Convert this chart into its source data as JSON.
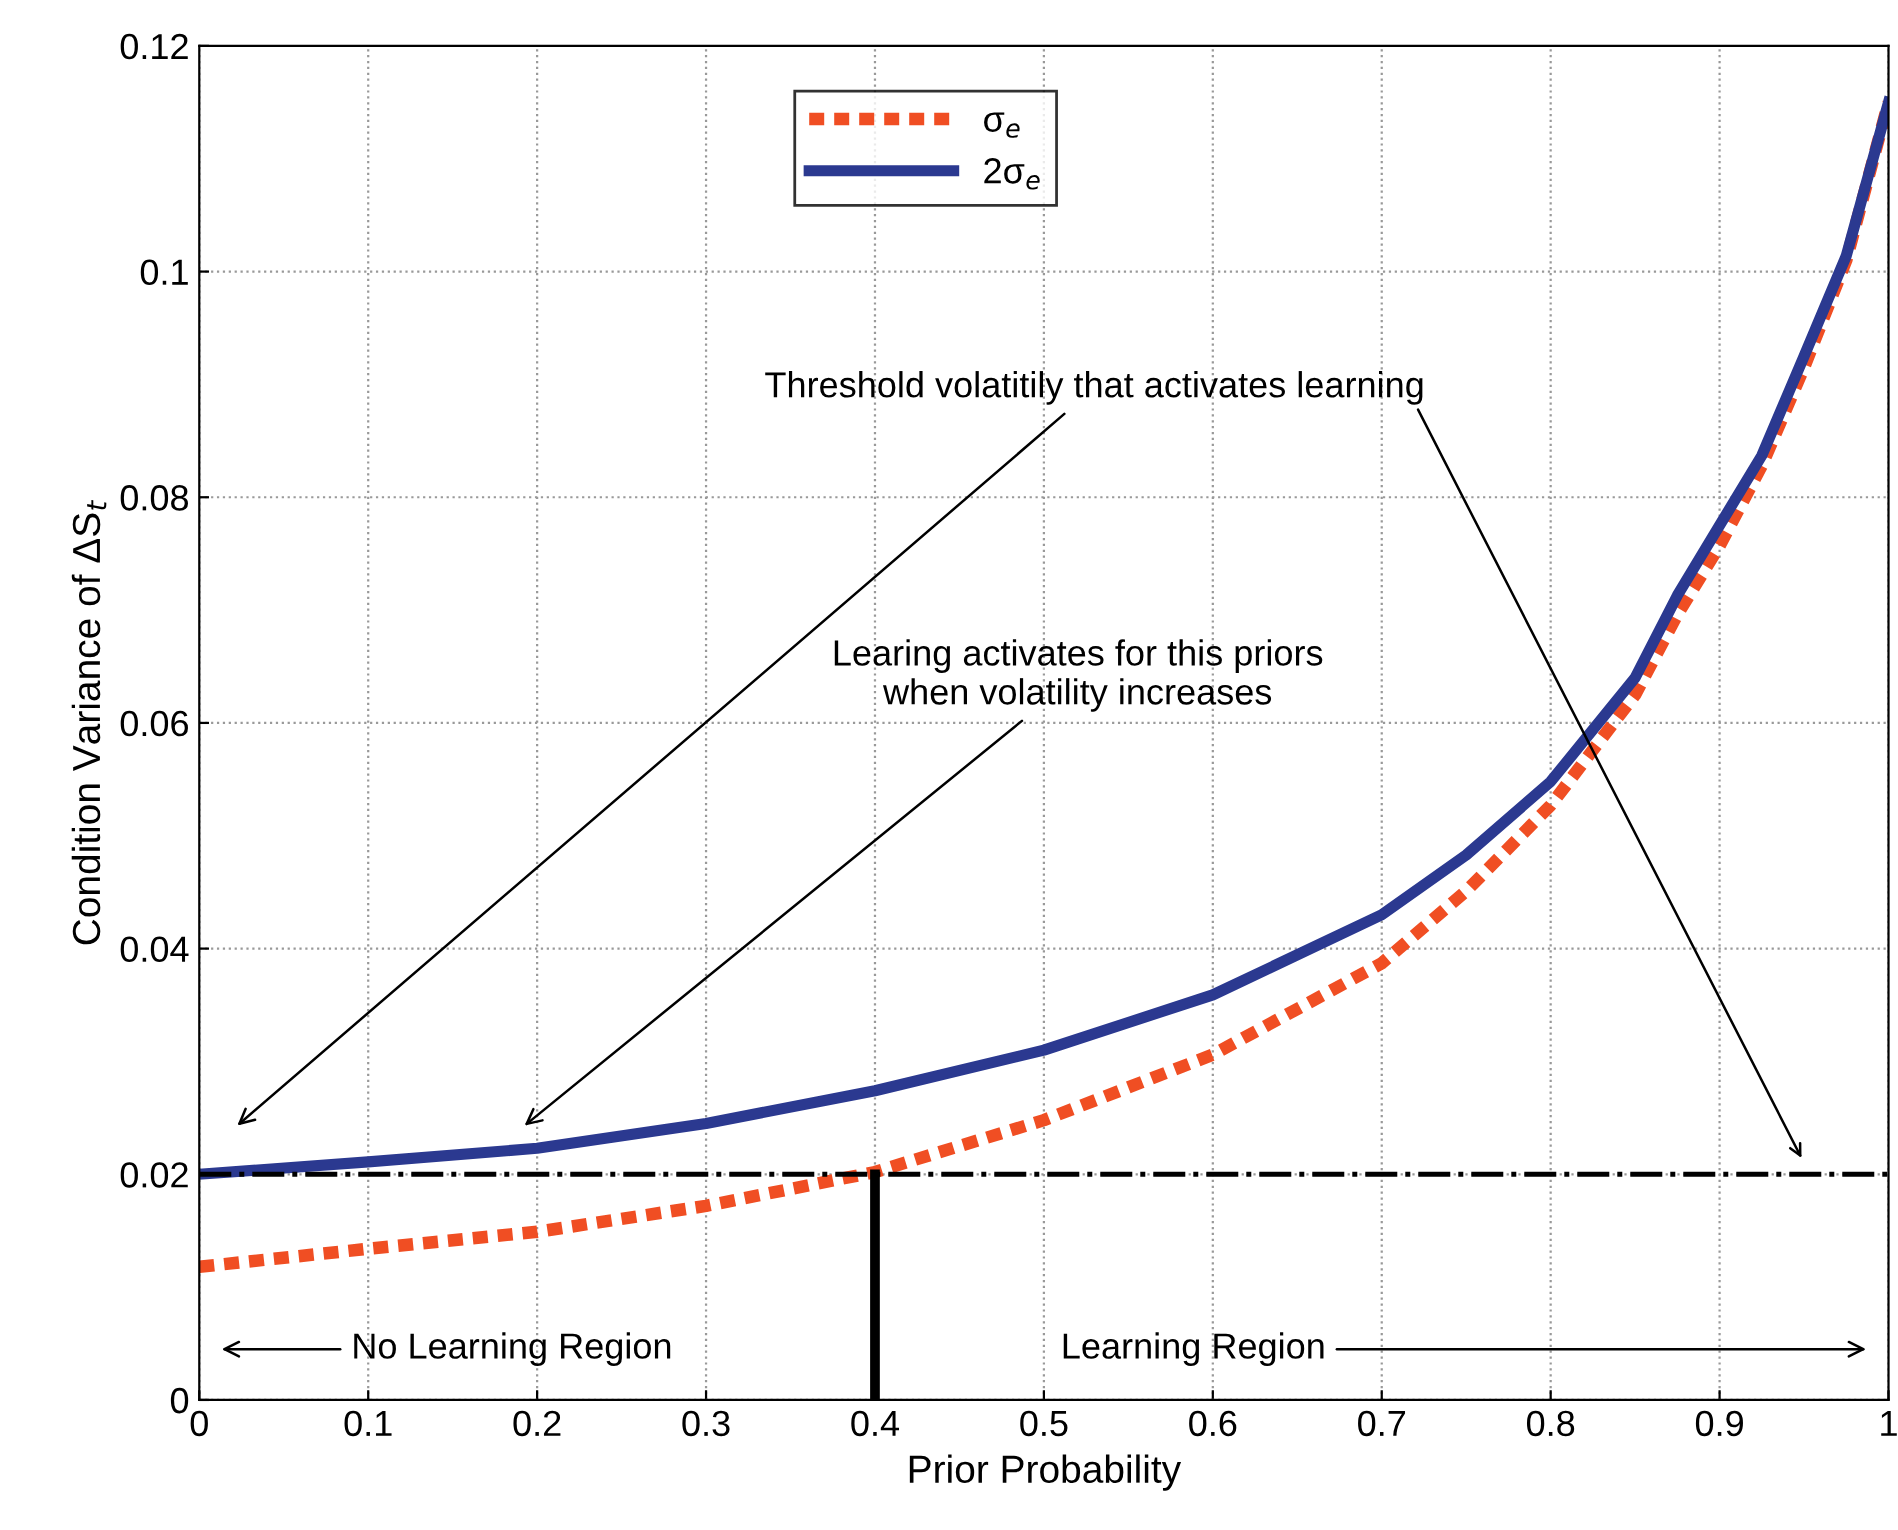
{
  "chart_data": {
    "type": "line",
    "xlabel": "Prior Probability",
    "ylabel": "Condition Variance of ΔS$_{t}$",
    "xlim": [
      0,
      1
    ],
    "ylim": [
      0,
      0.12
    ],
    "xticks": [
      0,
      0.1,
      0.2,
      0.3,
      0.4,
      0.5,
      0.6,
      0.7,
      0.8,
      0.9,
      1
    ],
    "yticks": [
      0,
      0.02,
      0.04,
      0.06,
      0.08,
      0.1,
      0.12
    ],
    "grid": true,
    "legend": "top",
    "marker": "none",
    "series": [
      {
        "name": "σ$_{e}$",
        "color": "#f04e23",
        "line_style": "dotted",
        "x": [
          0,
          0.1,
          0.2,
          0.3,
          0.4,
          0.5,
          0.6,
          0.7,
          0.75,
          0.8,
          0.85,
          0.875,
          0.9,
          0.925,
          0.95,
          0.975,
          1
        ],
        "values": [
          0.0118,
          0.0134,
          0.0149,
          0.0172,
          0.0202,
          0.0248,
          0.0306,
          0.0387,
          0.0451,
          0.0527,
          0.0625,
          0.0696,
          0.0757,
          0.0828,
          0.0915,
          0.101,
          0.115
        ]
      },
      {
        "name": "2σ$_{e}$",
        "color": "#2b3990",
        "line_style": "solid",
        "x": [
          0,
          0.1,
          0.2,
          0.3,
          0.4,
          0.5,
          0.6,
          0.7,
          0.75,
          0.8,
          0.85,
          0.875,
          0.9,
          0.925,
          0.95,
          0.975,
          1
        ],
        "values": [
          0.02,
          0.0211,
          0.0223,
          0.0245,
          0.0274,
          0.031,
          0.0359,
          0.043,
          0.0483,
          0.0548,
          0.064,
          0.0713,
          0.0775,
          0.0837,
          0.0925,
          0.1014,
          0.115
        ]
      }
    ],
    "ref_lines": [
      {
        "axis": "y",
        "value": 0.02,
        "color": "#000000",
        "line_style": "dashdot"
      },
      {
        "axis": "x",
        "value": 0.4,
        "color": "#000000",
        "line_style": "solid"
      }
    ],
    "annotations": [
      "Threshold volatitily that activates learning",
      "Learing activates for this priors\nwhen volatility increases",
      "No Learning Region",
      "Learning Region"
    ]
  }
}
